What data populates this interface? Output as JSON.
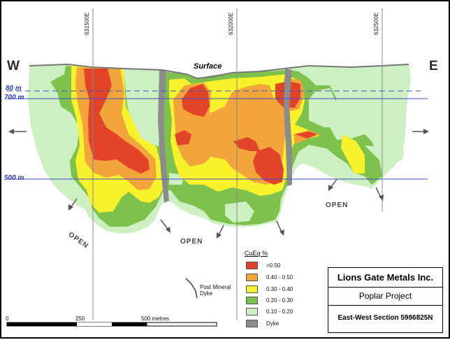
{
  "map": {
    "direction_west": "W",
    "direction_east": "E",
    "surface_label": "Surface",
    "eastings": [
      "631500E",
      "632000E",
      "632500E"
    ],
    "elevations": [
      "80 m",
      "700 m",
      "500 m"
    ],
    "open_labels": [
      "OPEN",
      "OPEN",
      "OPEN"
    ]
  },
  "legend": {
    "title": "CuEq %",
    "items": [
      {
        "label": ">0.50",
        "color": "#e2442a"
      },
      {
        "label": "0.40 - 0.50",
        "color": "#f2a53b"
      },
      {
        "label": "0.30 - 0.40",
        "color": "#f8f22c"
      },
      {
        "label": "0.20 - 0.30",
        "color": "#7fc14d"
      },
      {
        "label": "0.10 - 0.20",
        "color": "#cdf0c2"
      },
      {
        "label": "Dyke",
        "color": "#8c8c8c"
      }
    ],
    "post_mineral_dyke": "Post Mineral Dyke"
  },
  "scale": {
    "labels": [
      "0",
      "250",
      "500 metres"
    ]
  },
  "title_box": {
    "company": "Lions Gate Metals Inc.",
    "project": "Poplar Project",
    "section": "East-West Section 5986825N"
  }
}
